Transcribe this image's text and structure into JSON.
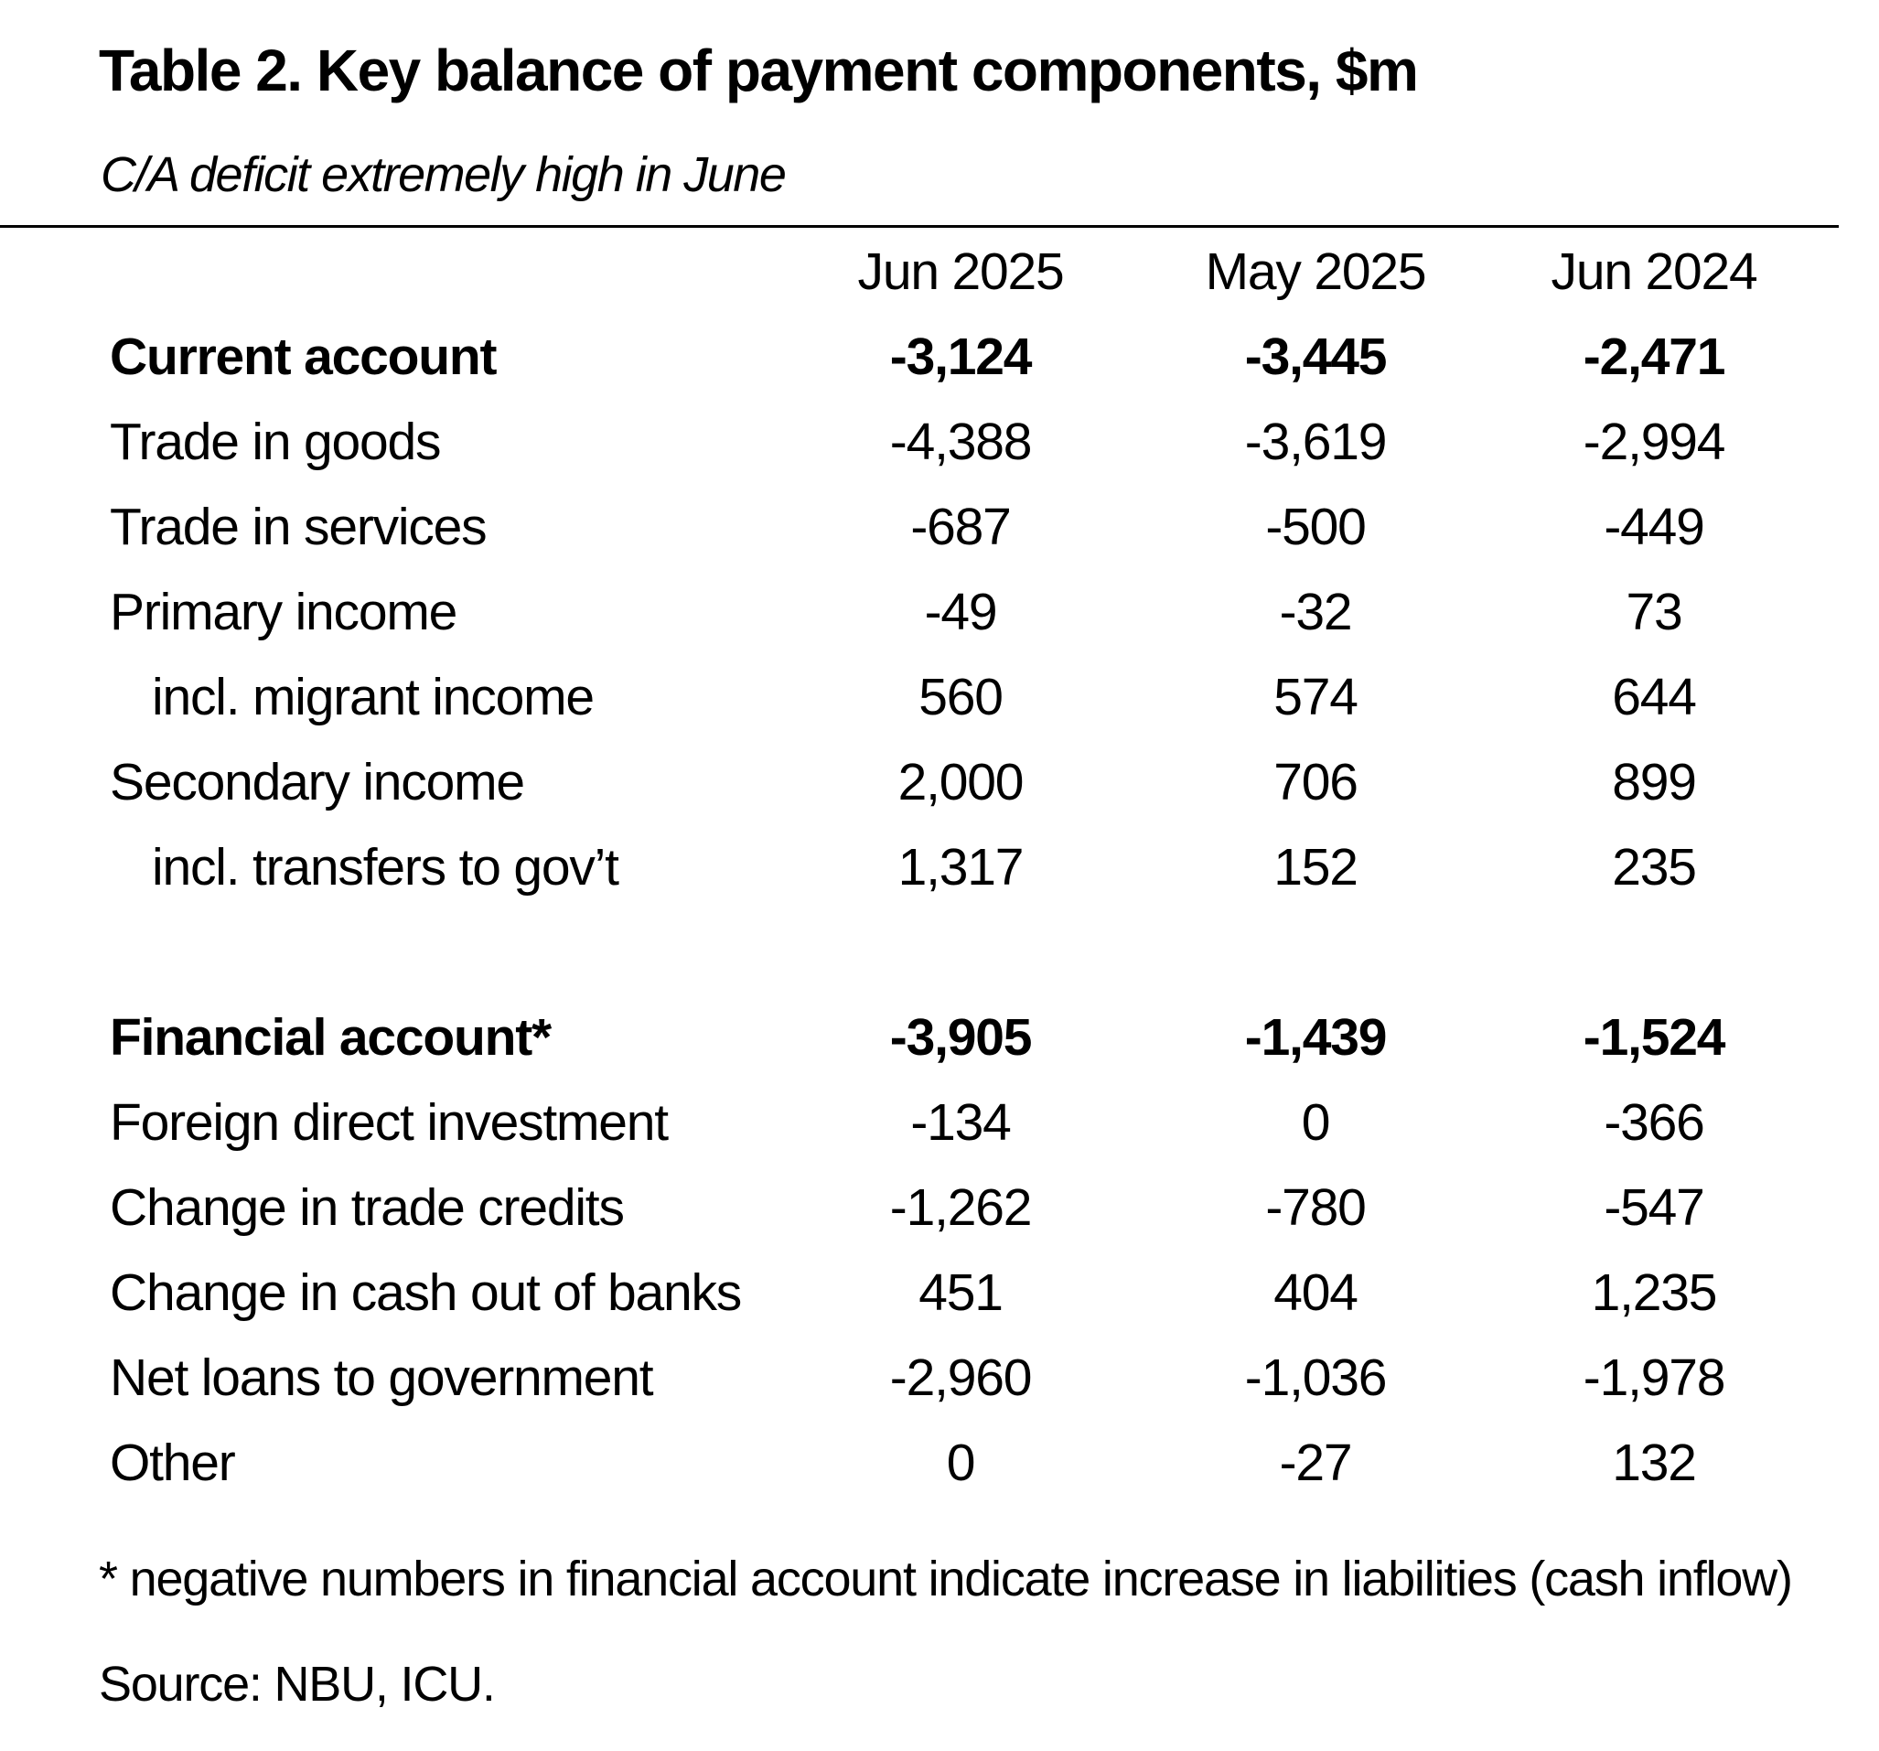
{
  "chart_data": {
    "type": "table",
    "title": "Table 2. Key balance of payment components, $m",
    "subtitle": "C/A deficit extremely high in June",
    "columns": [
      "Jun 2025",
      "May 2025",
      "Jun 2024"
    ],
    "rows": [
      {
        "label": "Current account",
        "values": [
          "-3,124",
          "-3,445",
          "-2,471"
        ],
        "bold": true
      },
      {
        "label": "Trade in goods",
        "values": [
          "-4,388",
          "-3,619",
          "-2,994"
        ]
      },
      {
        "label": "Trade in services",
        "values": [
          "-687",
          "-500",
          "-449"
        ]
      },
      {
        "label": "Primary income",
        "values": [
          "-49",
          "-32",
          "73"
        ]
      },
      {
        "label": "incl. migrant income",
        "values": [
          "560",
          "574",
          "644"
        ],
        "indent": true
      },
      {
        "label": "Secondary income",
        "values": [
          "2,000",
          "706",
          "899"
        ]
      },
      {
        "label": "incl. transfers to gov’t",
        "values": [
          "1,317",
          "152",
          "235"
        ],
        "indent": true
      },
      {
        "label": "Financial account*",
        "values": [
          "-3,905",
          "-1,439",
          "-1,524"
        ],
        "bold": true
      },
      {
        "label": "Foreign direct investment",
        "values": [
          "-134",
          "0",
          "-366"
        ]
      },
      {
        "label": "Change in trade credits",
        "values": [
          "-1,262",
          "-780",
          "-547"
        ]
      },
      {
        "label": "Change in cash out of banks",
        "values": [
          "451",
          "404",
          "1,235"
        ]
      },
      {
        "label": "Net loans to government",
        "values": [
          "-2,960",
          "-1,036",
          "-1,978"
        ]
      },
      {
        "label": "Other",
        "values": [
          "0",
          "-27",
          "132"
        ]
      }
    ],
    "footnote": "* negative numbers in financial account indicate increase in liabilities (cash inflow)",
    "source": "Source: NBU, ICU."
  }
}
